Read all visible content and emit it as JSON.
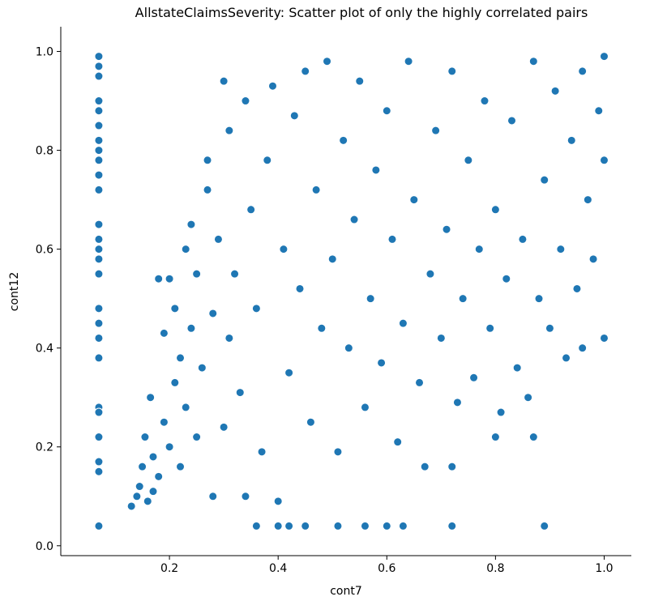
{
  "chart_data": {
    "type": "scatter",
    "title": "AllstateClaimsSeverity: Scatter plot of only the highly correlated pairs",
    "xlabel": "cont7",
    "ylabel": "cont12",
    "xlim": [
      0.0,
      1.05
    ],
    "ylim": [
      -0.02,
      1.05
    ],
    "xticks": [
      0.2,
      0.4,
      0.6,
      0.8,
      1.0
    ],
    "xtick_labels": [
      "0.2",
      "0.4",
      "0.6",
      "0.8",
      "1.0"
    ],
    "yticks": [
      0.0,
      0.2,
      0.4,
      0.6,
      0.8,
      1.0
    ],
    "ytick_labels": [
      "0.0",
      "0.2",
      "0.4",
      "0.6",
      "0.8",
      "1.0"
    ],
    "grid": false,
    "marker_color": "#1f77b4",
    "marker_edge_color": "#ffffff",
    "series": [
      {
        "points": [
          [
            0.07,
            0.99
          ],
          [
            0.07,
            0.97
          ],
          [
            0.07,
            0.95
          ],
          [
            0.07,
            0.9
          ],
          [
            0.07,
            0.88
          ],
          [
            0.07,
            0.85
          ],
          [
            0.07,
            0.82
          ],
          [
            0.07,
            0.8
          ],
          [
            0.07,
            0.78
          ],
          [
            0.07,
            0.75
          ],
          [
            0.07,
            0.72
          ],
          [
            0.07,
            0.65
          ],
          [
            0.07,
            0.62
          ],
          [
            0.07,
            0.6
          ],
          [
            0.07,
            0.58
          ],
          [
            0.07,
            0.55
          ],
          [
            0.07,
            0.48
          ],
          [
            0.07,
            0.45
          ],
          [
            0.07,
            0.42
          ],
          [
            0.07,
            0.38
          ],
          [
            0.07,
            0.28
          ],
          [
            0.07,
            0.27
          ],
          [
            0.07,
            0.22
          ],
          [
            0.07,
            0.17
          ],
          [
            0.07,
            0.15
          ],
          [
            0.07,
            0.04
          ],
          [
            0.13,
            0.08
          ],
          [
            0.14,
            0.1
          ],
          [
            0.145,
            0.12
          ],
          [
            0.15,
            0.16
          ],
          [
            0.155,
            0.22
          ],
          [
            0.16,
            0.09
          ],
          [
            0.165,
            0.3
          ],
          [
            0.17,
            0.11
          ],
          [
            0.17,
            0.18
          ],
          [
            0.18,
            0.54
          ],
          [
            0.18,
            0.14
          ],
          [
            0.19,
            0.25
          ],
          [
            0.19,
            0.43
          ],
          [
            0.2,
            0.2
          ],
          [
            0.2,
            0.54
          ],
          [
            0.21,
            0.33
          ],
          [
            0.21,
            0.48
          ],
          [
            0.22,
            0.16
          ],
          [
            0.22,
            0.38
          ],
          [
            0.23,
            0.6
          ],
          [
            0.23,
            0.28
          ],
          [
            0.24,
            0.65
          ],
          [
            0.24,
            0.44
          ],
          [
            0.25,
            0.22
          ],
          [
            0.25,
            0.55
          ],
          [
            0.26,
            0.36
          ],
          [
            0.27,
            0.72
          ],
          [
            0.27,
            0.78
          ],
          [
            0.28,
            0.47
          ],
          [
            0.28,
            0.1
          ],
          [
            0.29,
            0.62
          ],
          [
            0.3,
            0.24
          ],
          [
            0.3,
            0.94
          ],
          [
            0.31,
            0.84
          ],
          [
            0.31,
            0.42
          ],
          [
            0.32,
            0.55
          ],
          [
            0.33,
            0.31
          ],
          [
            0.34,
            0.1
          ],
          [
            0.34,
            0.9
          ],
          [
            0.35,
            0.68
          ],
          [
            0.36,
            0.04
          ],
          [
            0.36,
            0.48
          ],
          [
            0.37,
            0.19
          ],
          [
            0.38,
            0.78
          ],
          [
            0.39,
            0.93
          ],
          [
            0.4,
            0.09
          ],
          [
            0.4,
            0.04
          ],
          [
            0.41,
            0.6
          ],
          [
            0.42,
            0.35
          ],
          [
            0.42,
            0.04
          ],
          [
            0.43,
            0.87
          ],
          [
            0.44,
            0.52
          ],
          [
            0.45,
            0.96
          ],
          [
            0.45,
            0.04
          ],
          [
            0.46,
            0.25
          ],
          [
            0.47,
            0.72
          ],
          [
            0.48,
            0.44
          ],
          [
            0.49,
            0.98
          ],
          [
            0.5,
            0.58
          ],
          [
            0.51,
            0.04
          ],
          [
            0.51,
            0.19
          ],
          [
            0.52,
            0.82
          ],
          [
            0.53,
            0.4
          ],
          [
            0.54,
            0.66
          ],
          [
            0.55,
            0.94
          ],
          [
            0.56,
            0.28
          ],
          [
            0.56,
            0.04
          ],
          [
            0.57,
            0.5
          ],
          [
            0.58,
            0.76
          ],
          [
            0.59,
            0.37
          ],
          [
            0.6,
            0.04
          ],
          [
            0.6,
            0.88
          ],
          [
            0.61,
            0.62
          ],
          [
            0.62,
            0.21
          ],
          [
            0.63,
            0.04
          ],
          [
            0.63,
            0.45
          ],
          [
            0.64,
            0.98
          ],
          [
            0.65,
            0.7
          ],
          [
            0.66,
            0.33
          ],
          [
            0.67,
            0.16
          ],
          [
            0.68,
            0.55
          ],
          [
            0.69,
            0.84
          ],
          [
            0.7,
            0.42
          ],
          [
            0.71,
            0.64
          ],
          [
            0.72,
            0.96
          ],
          [
            0.72,
            0.16
          ],
          [
            0.72,
            0.04
          ],
          [
            0.73,
            0.29
          ],
          [
            0.74,
            0.5
          ],
          [
            0.75,
            0.78
          ],
          [
            0.76,
            0.34
          ],
          [
            0.77,
            0.6
          ],
          [
            0.78,
            0.9
          ],
          [
            0.79,
            0.44
          ],
          [
            0.8,
            0.22
          ],
          [
            0.8,
            0.68
          ],
          [
            0.81,
            0.27
          ],
          [
            0.82,
            0.54
          ],
          [
            0.83,
            0.86
          ],
          [
            0.84,
            0.36
          ],
          [
            0.85,
            0.62
          ],
          [
            0.86,
            0.3
          ],
          [
            0.87,
            0.98
          ],
          [
            0.87,
            0.22
          ],
          [
            0.88,
            0.5
          ],
          [
            0.89,
            0.04
          ],
          [
            0.89,
            0.74
          ],
          [
            0.9,
            0.44
          ],
          [
            0.91,
            0.92
          ],
          [
            0.92,
            0.6
          ],
          [
            0.93,
            0.38
          ],
          [
            0.94,
            0.82
          ],
          [
            0.95,
            0.52
          ],
          [
            0.96,
            0.96
          ],
          [
            0.96,
            0.4
          ],
          [
            0.97,
            0.7
          ],
          [
            0.98,
            0.58
          ],
          [
            0.99,
            0.88
          ],
          [
            1.0,
            0.42
          ],
          [
            1.0,
            0.78
          ],
          [
            1.0,
            0.99
          ]
        ]
      }
    ]
  }
}
